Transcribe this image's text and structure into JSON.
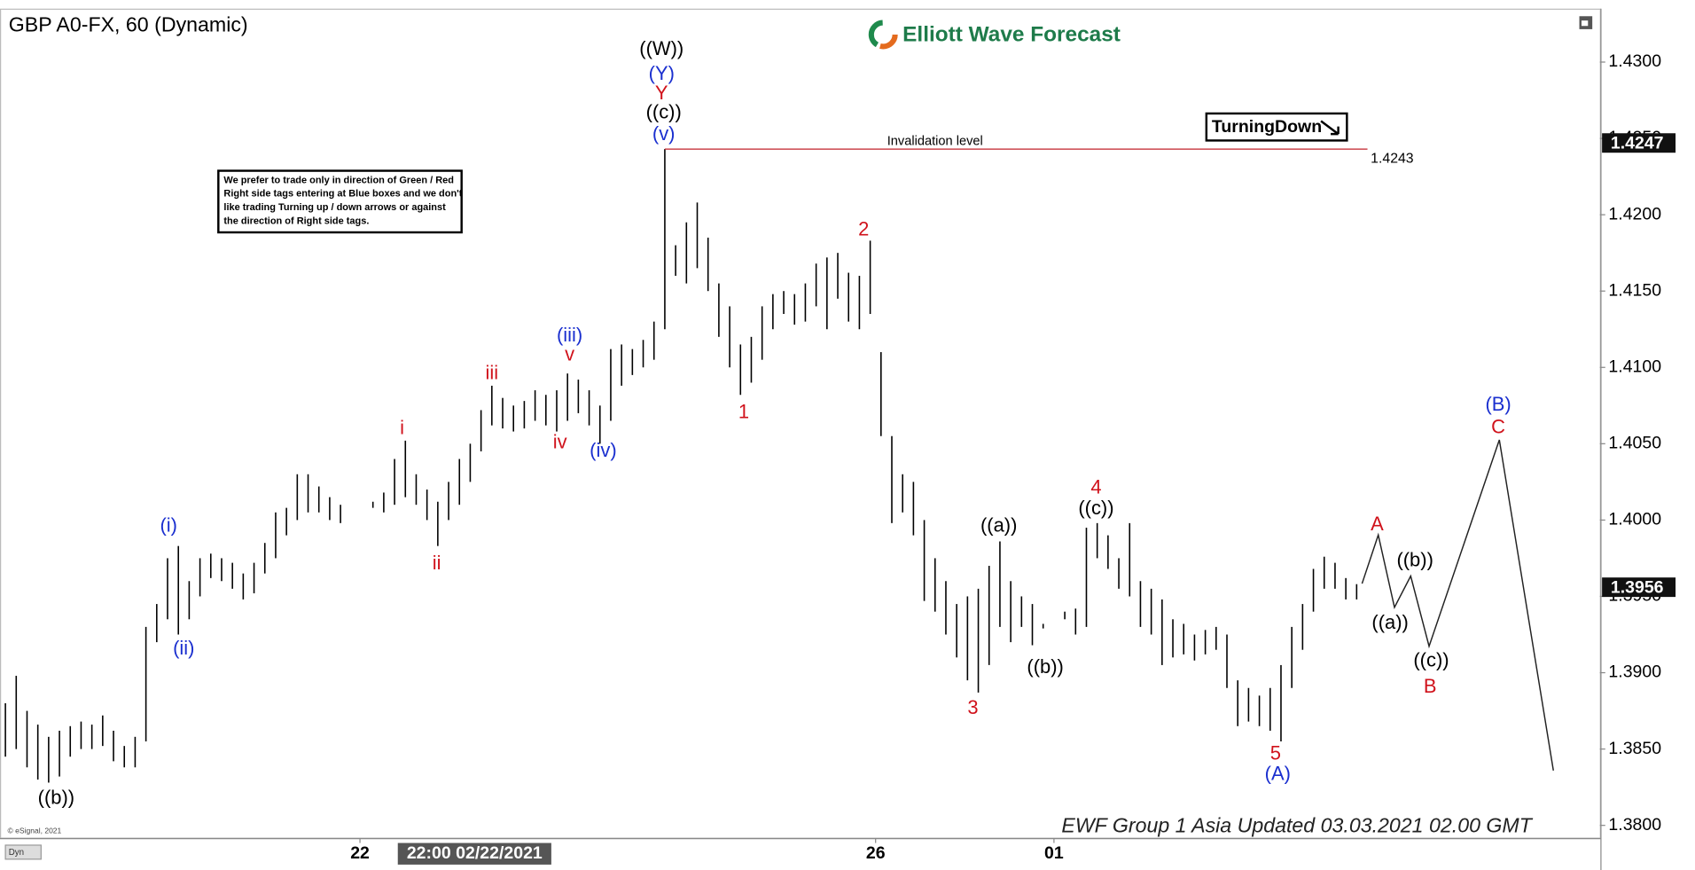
{
  "chart_data": {
    "type": "ohlc",
    "title": "GBP A0-FX, 60 (Dynamic)",
    "brand": "Elliott Wave Forecast",
    "signal": "TurningDown",
    "note": [
      "We prefer to trade only in direction of Green / Red",
      "Right side tags entering at Blue boxes and we don't",
      "like trading Turning up / down arrows or against",
      "the direction of Right side tags."
    ],
    "footer": "EWF Group 1 Asia Updated 03.03.2021 02.00 GMT",
    "copyright": "© eSignal, 2021",
    "corner_tag": "Dyn",
    "color": "#000000",
    "ylim": [
      1.3792,
      1.4335
    ],
    "yticks": [
      {
        "value": 1.38,
        "label": "1.3800"
      },
      {
        "value": 1.385,
        "label": "1.3850"
      },
      {
        "value": 1.39,
        "label": "1.3900"
      },
      {
        "value": 1.395,
        "label": "1.3950"
      },
      {
        "value": 1.4,
        "label": "1.4000"
      },
      {
        "value": 1.405,
        "label": "1.4050"
      },
      {
        "value": 1.41,
        "label": "1.4100"
      },
      {
        "value": 1.415,
        "label": "1.4150"
      },
      {
        "value": 1.42,
        "label": "1.4200"
      },
      {
        "value": 1.425,
        "label": "1.4250"
      },
      {
        "value": 1.43,
        "label": "1.4300"
      }
    ],
    "xlim": [
      -0.5,
      147.5
    ],
    "xticks": [
      {
        "value": 32.8,
        "label": "22"
      },
      {
        "value": 80.5,
        "label": "26"
      },
      {
        "value": 97,
        "label": "01"
      }
    ],
    "crosshair": {
      "value": 43.4,
      "label": "22:00 02/22/2021"
    },
    "invalidation": {
      "label": "Invalidation level",
      "value": 1.4243
    },
    "price_markers": [
      1.4247,
      1.3956
    ],
    "high": [
      1.388,
      1.3898,
      1.3875,
      1.3866,
      1.3858,
      1.3862,
      1.3865,
      1.3868,
      1.3866,
      1.3872,
      1.3862,
      1.3852,
      1.3858,
      1.393,
      1.3945,
      1.3975,
      1.3983,
      1.396,
      1.3975,
      1.3978,
      1.3975,
      1.3972,
      1.3965,
      1.3972,
      1.3985,
      1.4005,
      1.4008,
      1.403,
      1.403,
      1.4022,
      1.4015,
      1.401,
      null,
      null,
      1.4012,
      1.4018,
      1.404,
      1.4052,
      1.403,
      1.402,
      1.4012,
      1.4025,
      1.404,
      1.405,
      1.4072,
      1.4088,
      1.408,
      1.4075,
      1.4078,
      1.4085,
      1.4082,
      1.4085,
      1.4096,
      1.4092,
      1.4085,
      1.4075,
      1.4112,
      1.4115,
      1.4112,
      1.4118,
      1.413,
      1.4243,
      1.418,
      1.4195,
      1.4208,
      1.4185,
      1.4155,
      1.414,
      1.4115,
      1.412,
      1.414,
      1.4148,
      1.415,
      1.4148,
      1.4155,
      1.4168,
      1.4172,
      1.4175,
      1.4162,
      1.416,
      1.4183,
      1.411,
      1.4055,
      1.403,
      1.4025,
      1.4,
      1.3975,
      1.396,
      1.3945,
      1.395,
      1.3955,
      1.397,
      1.3986,
      1.396,
      1.395,
      1.3945,
      1.3932,
      null,
      1.394,
      1.3942,
      1.3995,
      1.3998,
      1.399,
      1.3975,
      1.3998,
      1.396,
      1.3955,
      1.3948,
      1.3935,
      1.3932,
      1.3925,
      1.3928,
      1.393,
      1.3925,
      1.3895,
      1.389,
      1.3885,
      1.389,
      1.3905,
      1.393,
      1.3945,
      1.3968,
      1.3976,
      1.3972,
      1.3962,
      1.3958
    ],
    "low": [
      1.3845,
      1.385,
      1.3838,
      1.383,
      1.3828,
      1.3832,
      1.3845,
      1.385,
      1.385,
      1.3852,
      1.3842,
      1.3838,
      1.3838,
      1.3855,
      1.392,
      1.3935,
      1.3925,
      1.3935,
      1.395,
      1.3962,
      1.396,
      1.3955,
      1.3948,
      1.3952,
      1.3965,
      1.3975,
      1.399,
      1.4,
      1.4005,
      1.4005,
      1.4,
      1.3998,
      null,
      null,
      1.4008,
      1.4005,
      1.401,
      1.4015,
      1.401,
      1.4,
      1.3983,
      1.4,
      1.401,
      1.4025,
      1.4045,
      1.4062,
      1.406,
      1.4058,
      1.406,
      1.4065,
      1.4062,
      1.4058,
      1.4065,
      1.407,
      1.4062,
      1.405,
      1.4065,
      1.4088,
      1.4095,
      1.41,
      1.4105,
      1.4125,
      1.416,
      1.4155,
      1.4165,
      1.415,
      1.412,
      1.41,
      1.4082,
      1.409,
      1.4105,
      1.4125,
      1.4135,
      1.4128,
      1.413,
      1.414,
      1.4125,
      1.4145,
      1.413,
      1.4125,
      1.4135,
      1.4055,
      1.3998,
      1.4005,
      1.399,
      1.3947,
      1.394,
      1.3925,
      1.391,
      1.3895,
      1.3887,
      1.3905,
      1.393,
      1.392,
      1.393,
      1.3918,
      1.3929,
      null,
      1.3935,
      1.3925,
      1.393,
      1.3975,
      1.3968,
      1.3955,
      1.395,
      1.393,
      1.3925,
      1.3905,
      1.391,
      1.3912,
      1.3908,
      1.3912,
      1.3915,
      1.389,
      1.3865,
      1.3868,
      1.3865,
      1.3862,
      1.3855,
      1.389,
      1.3915,
      1.394,
      1.3955,
      1.3955,
      1.3948,
      1.3948
    ],
    "wave_labels": [
      {
        "text": "((W))",
        "color": "#000000"
      },
      {
        "text": "(Y)",
        "color": "#1a2fcf"
      },
      {
        "text": "Y",
        "color": "#d0121b"
      },
      {
        "text": "((c))",
        "color": "#000000"
      },
      {
        "text": "(v)",
        "color": "#1a2fcf"
      },
      {
        "text": "(i)",
        "color": "#1a2fcf"
      },
      {
        "text": "(ii)",
        "color": "#1a2fcf"
      },
      {
        "text": "((b))",
        "color": "#000000"
      },
      {
        "text": "i",
        "color": "#d0121b"
      },
      {
        "text": "ii",
        "color": "#d0121b"
      },
      {
        "text": "iii",
        "color": "#d0121b"
      },
      {
        "text": "(iii)",
        "color": "#1a2fcf"
      },
      {
        "text": "v",
        "color": "#d0121b"
      },
      {
        "text": "iv",
        "color": "#d0121b"
      },
      {
        "text": "(iv)",
        "color": "#1a2fcf"
      },
      {
        "text": "1",
        "color": "#d0121b"
      },
      {
        "text": "2",
        "color": "#d0121b"
      },
      {
        "text": "3",
        "color": "#d0121b"
      },
      {
        "text": "((a))",
        "color": "#000000"
      },
      {
        "text": "((b))",
        "color": "#000000"
      },
      {
        "text": "4",
        "color": "#d0121b"
      },
      {
        "text": "((c))",
        "color": "#000000"
      },
      {
        "text": "5",
        "color": "#d0121b"
      },
      {
        "text": "(A)",
        "color": "#1a2fcf"
      },
      {
        "text": "A",
        "color": "#d0121b"
      },
      {
        "text": "((a))",
        "color": "#000000"
      },
      {
        "text": "((b))",
        "color": "#000000"
      },
      {
        "text": "((c))",
        "color": "#000000"
      },
      {
        "text": "B",
        "color": "#d0121b"
      },
      {
        "text": "(B)",
        "color": "#1a2fcf"
      },
      {
        "text": "C",
        "color": "#d0121b"
      }
    ]
  }
}
